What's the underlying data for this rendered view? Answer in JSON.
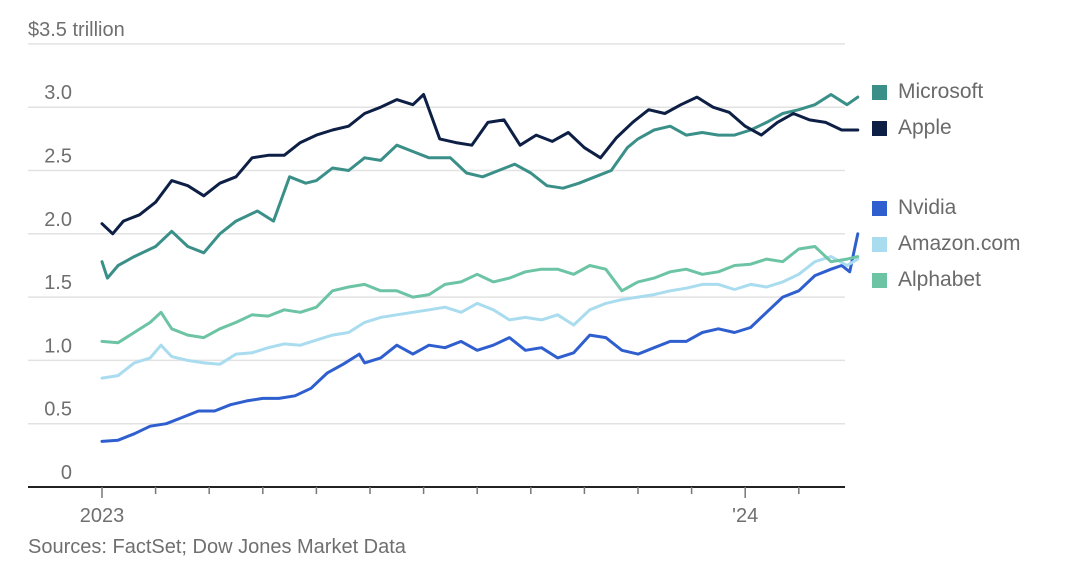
{
  "chart_data": {
    "type": "line",
    "title": "",
    "ylabel": "$3.5 trillion",
    "y_ticks": [
      "0",
      "0.5",
      "1.0",
      "1.5",
      "2.0",
      "2.5",
      "3.0",
      "$3.5 trillion"
    ],
    "y_tick_values": [
      0,
      0.5,
      1.0,
      1.5,
      2.0,
      2.5,
      3.0,
      3.5
    ],
    "ylim": [
      0,
      3.5
    ],
    "x_unit": "months since Jan 2023",
    "xlim": [
      -0.6,
      14.35
    ],
    "x_ticks": [
      0,
      1,
      2,
      3,
      4,
      5,
      6,
      7,
      8,
      9,
      10,
      11,
      12,
      13
    ],
    "x_tick_labels": [
      {
        "at": 0,
        "label": "2023"
      },
      {
        "at": 12,
        "label": "'24"
      }
    ],
    "grid": true,
    "legend_position": "right",
    "source": "Sources: FactSet; Dow Jones Market Data",
    "series": [
      {
        "name": "Microsoft",
        "color": "#3a9088",
        "x": [
          0,
          0.1,
          0.3,
          0.6,
          1.0,
          1.3,
          1.6,
          1.9,
          2.2,
          2.5,
          2.9,
          3.2,
          3.5,
          3.8,
          4.0,
          4.3,
          4.6,
          4.9,
          5.2,
          5.5,
          5.8,
          6.1,
          6.5,
          6.8,
          7.1,
          7.4,
          7.7,
          8.0,
          8.3,
          8.6,
          8.9,
          9.2,
          9.5,
          9.8,
          10.0,
          10.3,
          10.6,
          10.9,
          11.2,
          11.5,
          11.8,
          12.1,
          12.4,
          12.7,
          13.0,
          13.3,
          13.6,
          13.9,
          14.1
        ],
        "values": [
          1.78,
          1.65,
          1.75,
          1.82,
          1.9,
          2.02,
          1.9,
          1.85,
          2.0,
          2.1,
          2.18,
          2.1,
          2.45,
          2.4,
          2.42,
          2.52,
          2.5,
          2.6,
          2.58,
          2.7,
          2.65,
          2.6,
          2.6,
          2.48,
          2.45,
          2.5,
          2.55,
          2.48,
          2.38,
          2.36,
          2.4,
          2.45,
          2.5,
          2.68,
          2.75,
          2.82,
          2.85,
          2.78,
          2.8,
          2.78,
          2.78,
          2.82,
          2.88,
          2.95,
          2.98,
          3.02,
          3.1,
          3.02,
          3.08
        ]
      },
      {
        "name": "Apple",
        "color": "#0e1f45",
        "x": [
          0,
          0.2,
          0.4,
          0.7,
          1.0,
          1.3,
          1.6,
          1.9,
          2.2,
          2.5,
          2.8,
          3.1,
          3.4,
          3.7,
          4.0,
          4.3,
          4.6,
          4.9,
          5.2,
          5.5,
          5.8,
          6.0,
          6.3,
          6.6,
          6.9,
          7.2,
          7.5,
          7.8,
          8.1,
          8.4,
          8.7,
          9.0,
          9.3,
          9.6,
          9.9,
          10.2,
          10.5,
          10.8,
          11.1,
          11.4,
          11.7,
          12.0,
          12.3,
          12.6,
          12.9,
          13.2,
          13.5,
          13.8,
          14.1
        ],
        "values": [
          2.08,
          2.0,
          2.1,
          2.15,
          2.25,
          2.42,
          2.38,
          2.3,
          2.4,
          2.45,
          2.6,
          2.62,
          2.62,
          2.72,
          2.78,
          2.82,
          2.85,
          2.95,
          3.0,
          3.06,
          3.02,
          3.1,
          2.75,
          2.72,
          2.7,
          2.88,
          2.9,
          2.7,
          2.78,
          2.73,
          2.8,
          2.68,
          2.6,
          2.76,
          2.88,
          2.98,
          2.95,
          3.02,
          3.08,
          3.0,
          2.96,
          2.85,
          2.78,
          2.88,
          2.95,
          2.9,
          2.88,
          2.82,
          2.82
        ]
      },
      {
        "name": "Nvidia",
        "color": "#2f5fcf",
        "x": [
          0,
          0.3,
          0.6,
          0.9,
          1.2,
          1.5,
          1.8,
          2.1,
          2.4,
          2.7,
          3.0,
          3.3,
          3.6,
          3.9,
          4.2,
          4.5,
          4.8,
          4.9,
          5.2,
          5.5,
          5.8,
          6.1,
          6.4,
          6.7,
          7.0,
          7.3,
          7.6,
          7.9,
          8.2,
          8.5,
          8.8,
          9.1,
          9.4,
          9.7,
          10.0,
          10.3,
          10.6,
          10.9,
          11.2,
          11.5,
          11.8,
          12.1,
          12.4,
          12.7,
          13.0,
          13.3,
          13.6,
          13.8,
          13.95,
          14.1
        ],
        "values": [
          0.36,
          0.37,
          0.42,
          0.48,
          0.5,
          0.55,
          0.6,
          0.6,
          0.65,
          0.68,
          0.7,
          0.7,
          0.72,
          0.78,
          0.9,
          0.97,
          1.05,
          0.98,
          1.02,
          1.12,
          1.05,
          1.12,
          1.1,
          1.15,
          1.08,
          1.12,
          1.18,
          1.08,
          1.1,
          1.02,
          1.06,
          1.2,
          1.18,
          1.08,
          1.05,
          1.1,
          1.15,
          1.15,
          1.22,
          1.25,
          1.22,
          1.26,
          1.38,
          1.5,
          1.55,
          1.67,
          1.72,
          1.75,
          1.7,
          2.0
        ]
      },
      {
        "name": "Amazon.com",
        "color": "#a9dcee",
        "x": [
          0,
          0.3,
          0.6,
          0.9,
          1.1,
          1.3,
          1.6,
          1.9,
          2.2,
          2.5,
          2.8,
          3.1,
          3.4,
          3.7,
          4.0,
          4.3,
          4.6,
          4.9,
          5.2,
          5.5,
          5.8,
          6.1,
          6.4,
          6.7,
          7.0,
          7.3,
          7.6,
          7.9,
          8.2,
          8.5,
          8.8,
          9.1,
          9.4,
          9.7,
          10.0,
          10.3,
          10.6,
          10.9,
          11.2,
          11.5,
          11.8,
          12.1,
          12.4,
          12.7,
          13.0,
          13.3,
          13.6,
          13.9,
          14.1
        ],
        "values": [
          0.86,
          0.88,
          0.98,
          1.02,
          1.12,
          1.03,
          1.0,
          0.98,
          0.97,
          1.05,
          1.06,
          1.1,
          1.13,
          1.12,
          1.16,
          1.2,
          1.22,
          1.3,
          1.34,
          1.36,
          1.38,
          1.4,
          1.42,
          1.38,
          1.45,
          1.4,
          1.32,
          1.34,
          1.32,
          1.36,
          1.28,
          1.4,
          1.45,
          1.48,
          1.5,
          1.52,
          1.55,
          1.57,
          1.6,
          1.6,
          1.56,
          1.6,
          1.58,
          1.62,
          1.68,
          1.78,
          1.82,
          1.75,
          1.8
        ]
      },
      {
        "name": "Alphabet",
        "color": "#6cc4a5",
        "x": [
          0,
          0.3,
          0.6,
          0.9,
          1.1,
          1.3,
          1.6,
          1.9,
          2.2,
          2.5,
          2.8,
          3.1,
          3.4,
          3.7,
          4.0,
          4.3,
          4.6,
          4.9,
          5.2,
          5.5,
          5.8,
          6.1,
          6.4,
          6.7,
          7.0,
          7.3,
          7.6,
          7.9,
          8.2,
          8.5,
          8.8,
          9.1,
          9.4,
          9.7,
          10.0,
          10.3,
          10.6,
          10.9,
          11.2,
          11.5,
          11.8,
          12.1,
          12.4,
          12.7,
          13.0,
          13.3,
          13.6,
          13.9,
          14.1
        ],
        "values": [
          1.15,
          1.14,
          1.22,
          1.3,
          1.38,
          1.25,
          1.2,
          1.18,
          1.25,
          1.3,
          1.36,
          1.35,
          1.4,
          1.38,
          1.42,
          1.55,
          1.58,
          1.6,
          1.55,
          1.55,
          1.5,
          1.52,
          1.6,
          1.62,
          1.68,
          1.62,
          1.65,
          1.7,
          1.72,
          1.72,
          1.68,
          1.75,
          1.72,
          1.55,
          1.62,
          1.65,
          1.7,
          1.72,
          1.68,
          1.7,
          1.75,
          1.76,
          1.8,
          1.78,
          1.88,
          1.9,
          1.78,
          1.8,
          1.82
        ]
      }
    ]
  },
  "legend": {
    "items": [
      {
        "label": "Microsoft",
        "color": "#3a9088"
      },
      {
        "label": "Apple",
        "color": "#0e1f45"
      },
      {
        "label": "Nvidia",
        "color": "#2f5fcf"
      },
      {
        "label": "Amazon.com",
        "color": "#a9dcee"
      },
      {
        "label": "Alphabet",
        "color": "#6cc4a5"
      }
    ]
  },
  "source": "Sources: FactSet; Dow Jones Market Data"
}
